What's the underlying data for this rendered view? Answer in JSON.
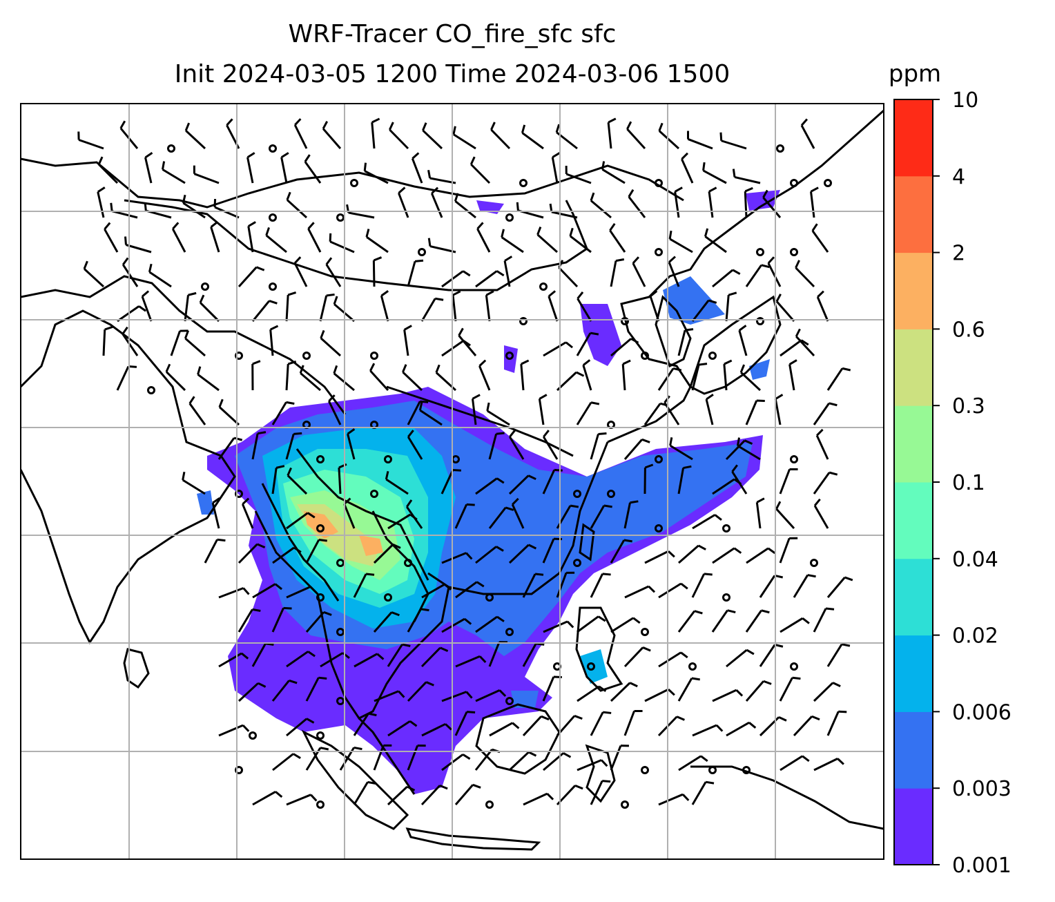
{
  "title": {
    "line1": "WRF-Tracer CO_fire_sfc sfc",
    "line2": "Init 2024-03-05 1200 Time 2024-03-06 1500"
  },
  "colorbar": {
    "unit": "ppm",
    "levels": [
      "0.001",
      "0.003",
      "0.006",
      "0.02",
      "0.04",
      "0.1",
      "0.3",
      "0.6",
      "2",
      "4",
      "10"
    ],
    "colors": [
      "#6a2cff",
      "#3472f2",
      "#04b2ec",
      "#2ddfd6",
      "#63fcbd",
      "#97f995",
      "#cce180",
      "#fcb061",
      "#fd6f3f",
      "#fe2b17"
    ]
  },
  "map": {
    "background": "#ffffff",
    "coast_color": "#000000",
    "grid_color": "#b0b0b0",
    "barb_color": "#000000"
  }
}
